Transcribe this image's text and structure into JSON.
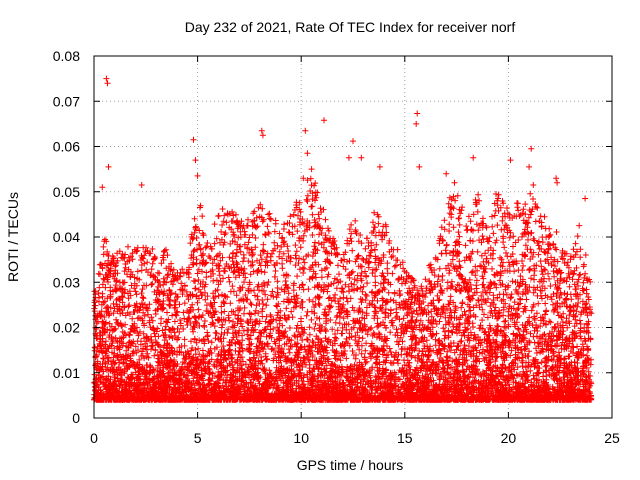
{
  "chart_data": {
    "type": "scatter",
    "title": "Day 232 of 2021, Rate Of TEC Index for receiver norf",
    "xlabel": "GPS time / hours",
    "ylabel": "ROTI / TECUs",
    "xlim": [
      0,
      25
    ],
    "ylim": [
      0,
      0.08
    ],
    "x_ticks": [
      0,
      5,
      10,
      15,
      20,
      25
    ],
    "x_tick_labels": [
      "0",
      "5",
      "10",
      "15",
      "20",
      "25"
    ],
    "y_ticks": [
      0,
      0.01,
      0.02,
      0.03,
      0.04,
      0.05,
      0.06,
      0.07,
      0.08
    ],
    "y_tick_labels": [
      "0",
      "0.01",
      "0.02",
      "0.03",
      "0.04",
      "0.05",
      "0.06",
      "0.07",
      "0.08"
    ],
    "grid": true,
    "marker": "plus",
    "series_color": "#ff0000",
    "series": [
      {
        "name": "norf",
        "x_range": [
          0,
          24
        ],
        "typical_range": [
          0.004,
          0.025
        ],
        "peaks": [
          {
            "x": 0.6,
            "y": 0.075
          },
          {
            "x": 0.65,
            "y": 0.074
          },
          {
            "x": 0.7,
            "y": 0.0555
          },
          {
            "x": 0.4,
            "y": 0.051
          },
          {
            "x": 2.3,
            "y": 0.0515
          },
          {
            "x": 4.8,
            "y": 0.0615
          },
          {
            "x": 4.9,
            "y": 0.057
          },
          {
            "x": 5.0,
            "y": 0.0535
          },
          {
            "x": 8.1,
            "y": 0.0635
          },
          {
            "x": 8.15,
            "y": 0.0625
          },
          {
            "x": 10.2,
            "y": 0.0635
          },
          {
            "x": 10.3,
            "y": 0.0585
          },
          {
            "x": 10.5,
            "y": 0.055
          },
          {
            "x": 10.1,
            "y": 0.053
          },
          {
            "x": 11.1,
            "y": 0.0658
          },
          {
            "x": 12.5,
            "y": 0.0612
          },
          {
            "x": 12.3,
            "y": 0.0575
          },
          {
            "x": 12.9,
            "y": 0.0575
          },
          {
            "x": 13.8,
            "y": 0.0555
          },
          {
            "x": 15.6,
            "y": 0.0673
          },
          {
            "x": 15.55,
            "y": 0.065
          },
          {
            "x": 15.7,
            "y": 0.0555
          },
          {
            "x": 17.0,
            "y": 0.054
          },
          {
            "x": 17.4,
            "y": 0.052
          },
          {
            "x": 18.3,
            "y": 0.0575
          },
          {
            "x": 19.4,
            "y": 0.0495
          },
          {
            "x": 20.1,
            "y": 0.057
          },
          {
            "x": 21.0,
            "y": 0.0555
          },
          {
            "x": 21.1,
            "y": 0.0595
          },
          {
            "x": 21.2,
            "y": 0.0515
          },
          {
            "x": 22.3,
            "y": 0.053
          },
          {
            "x": 22.35,
            "y": 0.052
          },
          {
            "x": 23.7,
            "y": 0.0485
          }
        ],
        "envelope": [
          {
            "x": 0.0,
            "y": 0.028
          },
          {
            "x": 0.5,
            "y": 0.04
          },
          {
            "x": 1.0,
            "y": 0.036
          },
          {
            "x": 1.5,
            "y": 0.038
          },
          {
            "x": 2.0,
            "y": 0.038
          },
          {
            "x": 2.5,
            "y": 0.04
          },
          {
            "x": 3.0,
            "y": 0.036
          },
          {
            "x": 3.5,
            "y": 0.038
          },
          {
            "x": 4.0,
            "y": 0.032
          },
          {
            "x": 4.5,
            "y": 0.034
          },
          {
            "x": 5.0,
            "y": 0.05
          },
          {
            "x": 5.5,
            "y": 0.04
          },
          {
            "x": 6.0,
            "y": 0.045
          },
          {
            "x": 6.5,
            "y": 0.048
          },
          {
            "x": 7.0,
            "y": 0.046
          },
          {
            "x": 7.5,
            "y": 0.044
          },
          {
            "x": 8.0,
            "y": 0.05
          },
          {
            "x": 8.5,
            "y": 0.046
          },
          {
            "x": 9.0,
            "y": 0.042
          },
          {
            "x": 9.5,
            "y": 0.046
          },
          {
            "x": 10.0,
            "y": 0.05
          },
          {
            "x": 10.5,
            "y": 0.055
          },
          {
            "x": 11.0,
            "y": 0.048
          },
          {
            "x": 11.5,
            "y": 0.04
          },
          {
            "x": 12.0,
            "y": 0.036
          },
          {
            "x": 12.5,
            "y": 0.045
          },
          {
            "x": 13.0,
            "y": 0.04
          },
          {
            "x": 13.5,
            "y": 0.046
          },
          {
            "x": 14.0,
            "y": 0.044
          },
          {
            "x": 14.5,
            "y": 0.04
          },
          {
            "x": 15.0,
            "y": 0.034
          },
          {
            "x": 15.5,
            "y": 0.03
          },
          {
            "x": 16.0,
            "y": 0.034
          },
          {
            "x": 16.5,
            "y": 0.036
          },
          {
            "x": 17.0,
            "y": 0.048
          },
          {
            "x": 17.5,
            "y": 0.05
          },
          {
            "x": 18.0,
            "y": 0.046
          },
          {
            "x": 18.5,
            "y": 0.05
          },
          {
            "x": 19.0,
            "y": 0.042
          },
          {
            "x": 19.5,
            "y": 0.05
          },
          {
            "x": 20.0,
            "y": 0.046
          },
          {
            "x": 20.5,
            "y": 0.048
          },
          {
            "x": 21.0,
            "y": 0.05
          },
          {
            "x": 21.5,
            "y": 0.046
          },
          {
            "x": 22.0,
            "y": 0.044
          },
          {
            "x": 22.5,
            "y": 0.04
          },
          {
            "x": 23.0,
            "y": 0.036
          },
          {
            "x": 23.5,
            "y": 0.044
          },
          {
            "x": 24.0,
            "y": 0.03
          }
        ]
      }
    ]
  }
}
